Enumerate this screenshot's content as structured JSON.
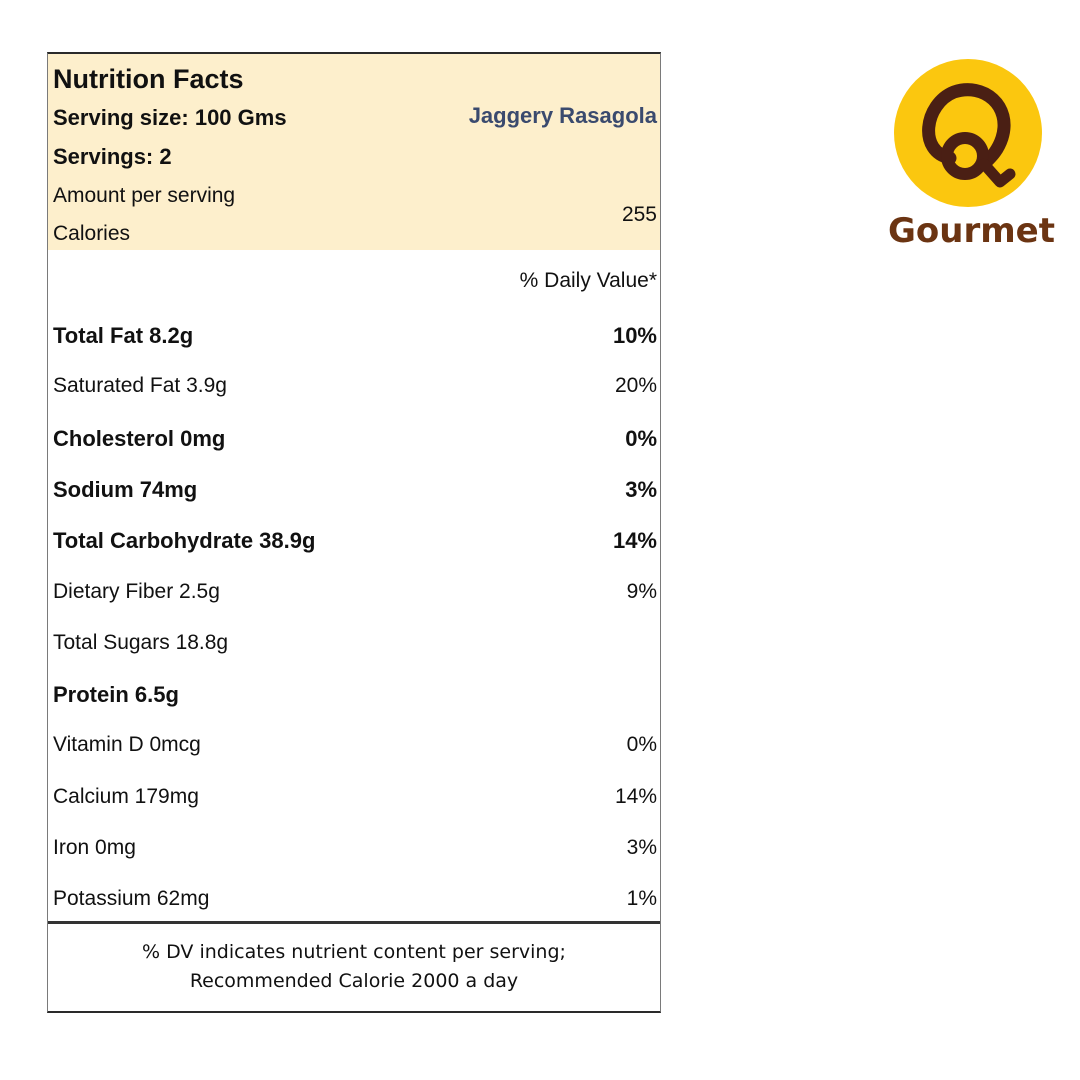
{
  "label": {
    "title": "Nutrition Facts",
    "serving_size": "Serving size: 100 Gms",
    "product_name": "Jaggery Rasagola",
    "servings": "Servings: 2",
    "amount_per_serving": "Amount per serving",
    "calories_label": "Calories",
    "calories_value": "255",
    "daily_value_header": "% Daily Value*",
    "nutrients": [
      {
        "name": "Total Fat 8.2g",
        "dv": "10%",
        "bold": true
      },
      {
        "name": "Saturated Fat 3.9g",
        "dv": "20%",
        "bold": false
      },
      {
        "name": "Cholesterol 0mg",
        "dv": "0%",
        "bold": true
      },
      {
        "name": "Sodium 74mg",
        "dv": "3%",
        "bold": true
      },
      {
        "name": "Total Carbohydrate 38.9g",
        "dv": "14%",
        "bold": true
      },
      {
        "name": "Dietary Fiber 2.5g",
        "dv": "9%",
        "bold": false
      },
      {
        "name": "Total Sugars 18.8g",
        "dv": "",
        "bold": false
      },
      {
        "name": "Protein 6.5g",
        "dv": "",
        "bold": true
      },
      {
        "name": "Vitamin D 0mcg",
        "dv": "0%",
        "bold": false
      },
      {
        "name": "Calcium 179mg",
        "dv": "14%",
        "bold": false
      },
      {
        "name": "Iron 0mg",
        "dv": "3%",
        "bold": false
      },
      {
        "name": "Potassium 62mg",
        "dv": "1%",
        "bold": false
      }
    ],
    "footnote_line1": "% DV indicates nutrient content per serving;",
    "footnote_line2": "Recommended Calorie 2000 a day"
  },
  "logo": {
    "text": "Gourmet",
    "circle_color": "#fbc70f",
    "mark_color": "#4a1f14",
    "text_color": "#6b3412"
  },
  "colors": {
    "header_background": "#fdefcc",
    "product_name_color": "#3a4a6e"
  }
}
